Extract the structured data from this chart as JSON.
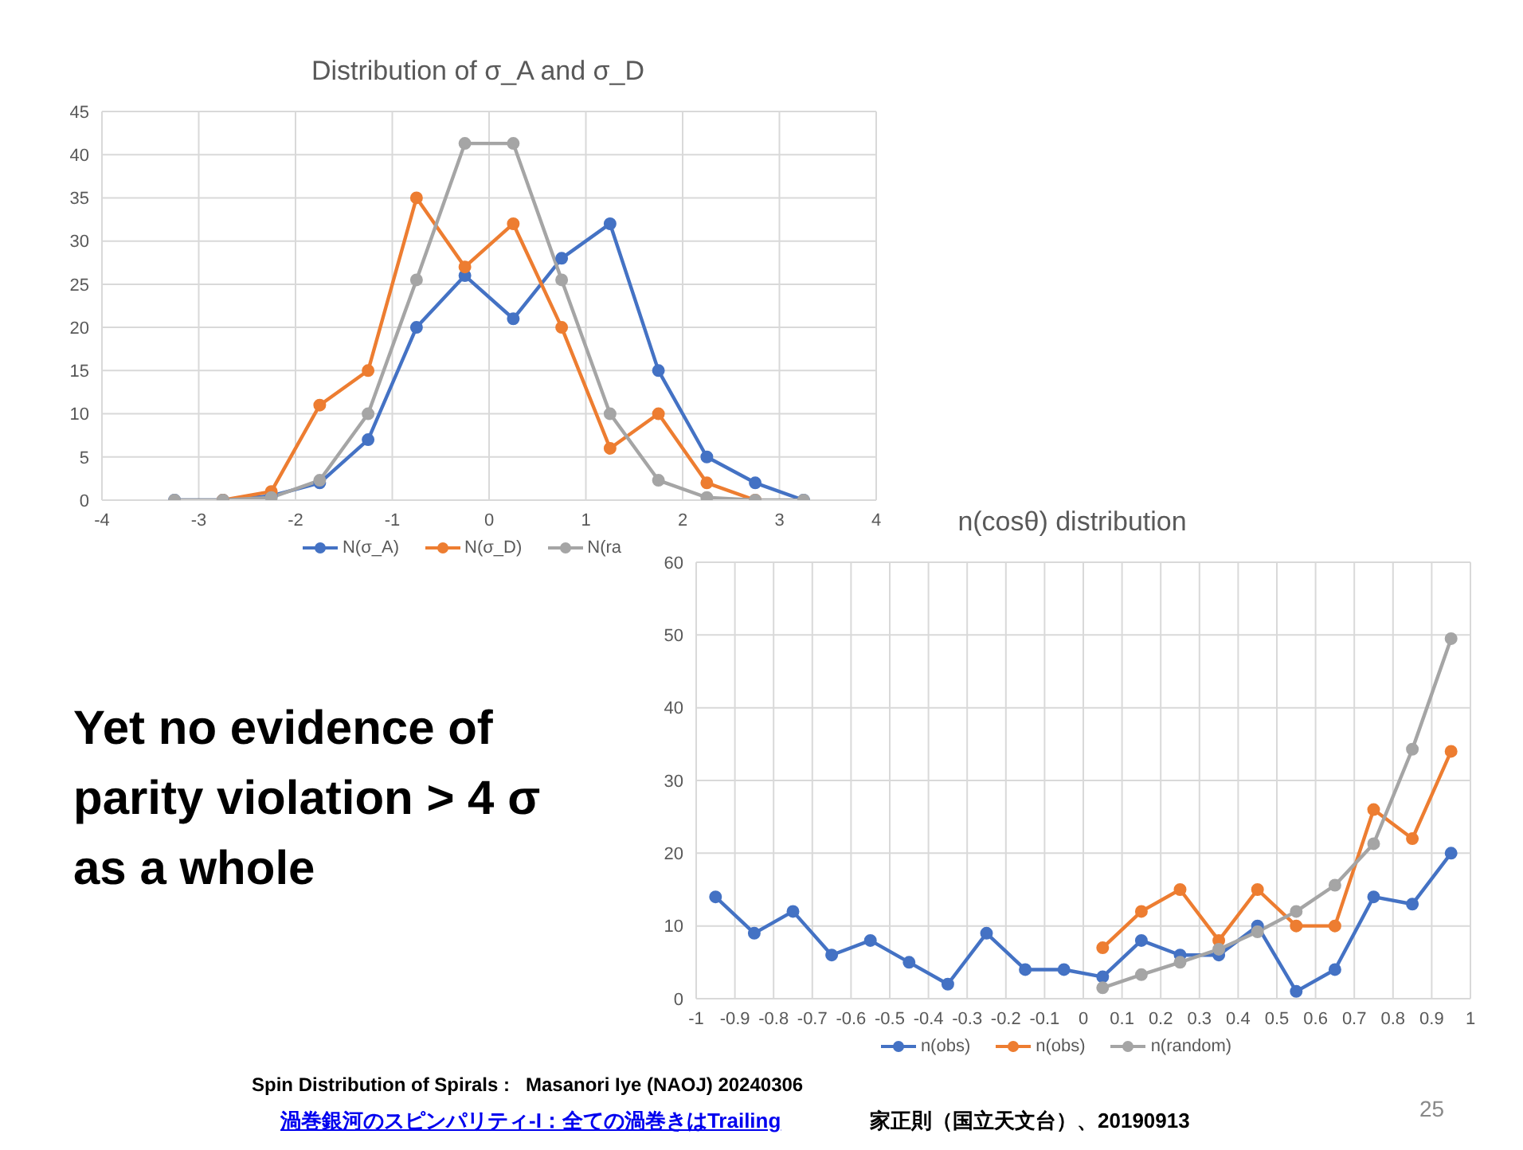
{
  "chart_data": [
    {
      "type": "line",
      "title": "Distribution of σ_A and σ_D",
      "x": [
        -3.25,
        -2.75,
        -2.25,
        -1.75,
        -1.25,
        -0.75,
        -0.25,
        0.25,
        0.75,
        1.25,
        1.75,
        2.25,
        2.75,
        3.25
      ],
      "series": [
        {
          "name": "N(σ_A)",
          "color": "#4472c4",
          "values": [
            0,
            0,
            0.5,
            2,
            7,
            20,
            26,
            21,
            28,
            32,
            15,
            5,
            2,
            0
          ]
        },
        {
          "name": "N(σ_D)",
          "color": "#ed7d31",
          "values": [
            null,
            0,
            1,
            11,
            15,
            35,
            27,
            32,
            20,
            6,
            10,
            2,
            0,
            null
          ]
        },
        {
          "name": "N(ra",
          "color": "#a5a5a5",
          "values": [
            0,
            0,
            0.3,
            2.3,
            10,
            25.5,
            41.3,
            41.3,
            25.5,
            10,
            2.3,
            0.3,
            0,
            0
          ]
        }
      ],
      "xlim": [
        -4,
        4
      ],
      "xticks": [
        -4,
        -3,
        -2,
        -1,
        0,
        1,
        2,
        3,
        4
      ],
      "ylim": [
        0,
        45
      ],
      "yticks": [
        0,
        5,
        10,
        15,
        20,
        25,
        30,
        35,
        40,
        45
      ],
      "grid": true,
      "legend": "bottom",
      "marker": "circle",
      "line_style": "solid",
      "annotations": [
        "Yet no evidence of parity violation > 4 σ as a whole",
        "Spin Distribution of Spirals :   Masanori Iye (NAOJ) 20240306",
        "渦巻銀河のスピンパリティ-I：全ての渦巻きはTrailing",
        "家正則（国立天文台）、20190913",
        "25"
      ]
    },
    {
      "type": "line",
      "title": "n(cosθ) distribution",
      "x": [
        -0.95,
        -0.85,
        -0.75,
        -0.65,
        -0.55,
        -0.45,
        -0.35,
        -0.25,
        -0.15,
        -0.05,
        0.05,
        0.15,
        0.25,
        0.35,
        0.45,
        0.55,
        0.65,
        0.75,
        0.85,
        0.95
      ],
      "series": [
        {
          "name": "n(obs)",
          "color": "#4472c4",
          "values": [
            14,
            9,
            12,
            6,
            8,
            5,
            2,
            9,
            4,
            4,
            3,
            8,
            6,
            6,
            10,
            1,
            4,
            14,
            13,
            20
          ]
        },
        {
          "name": "n(obs)",
          "color": "#ed7d31",
          "values": [
            null,
            null,
            null,
            null,
            null,
            null,
            null,
            null,
            null,
            null,
            7,
            12,
            15,
            8,
            15,
            10,
            10,
            26,
            22,
            34
          ]
        },
        {
          "name": "n(random)",
          "color": "#a5a5a5",
          "values": [
            null,
            null,
            null,
            null,
            null,
            null,
            null,
            null,
            null,
            null,
            1.5,
            3.3,
            5,
            6.8,
            9.2,
            12,
            15.6,
            21.3,
            34.3,
            49.5
          ]
        }
      ],
      "xlim": [
        -1,
        1
      ],
      "xticks": [
        -1,
        -0.9,
        -0.8,
        -0.7,
        -0.6,
        -0.5,
        -0.4,
        -0.3,
        -0.2,
        -0.1,
        0,
        0.1,
        0.2,
        0.3,
        0.4,
        0.5,
        0.6,
        0.7,
        0.8,
        0.9,
        1
      ],
      "ylim": [
        0,
        60
      ],
      "yticks": [
        0,
        10,
        20,
        30,
        40,
        50,
        60
      ],
      "grid": true,
      "legend": "bottom",
      "marker": "circle",
      "line_style": "solid"
    }
  ]
}
